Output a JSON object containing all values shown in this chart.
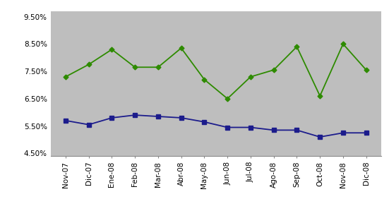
{
  "categories": [
    "Nov-07",
    "Dic-07",
    "Ene-08",
    "Feb-08",
    "Mar-08",
    "Abr-08",
    "May-08",
    "Jun-08",
    "Jul-08",
    "Ago-08",
    "Sep-08",
    "Oct-08",
    "Nov-08",
    "Dic-08"
  ],
  "rendimiento": [
    0.073,
    0.0775,
    0.083,
    0.0765,
    0.0765,
    0.0835,
    0.072,
    0.065,
    0.073,
    0.0755,
    0.084,
    0.066,
    0.085,
    0.0755
  ],
  "tasa_pasiva": [
    0.057,
    0.0555,
    0.058,
    0.059,
    0.0585,
    0.058,
    0.0565,
    0.0545,
    0.0545,
    0.0535,
    0.0535,
    0.051,
    0.0525,
    0.0525
  ],
  "ylim": [
    0.044,
    0.097
  ],
  "yticks": [
    0.045,
    0.055,
    0.065,
    0.075,
    0.085,
    0.095
  ],
  "rendimiento_color": "#2E8B00",
  "tasa_pasiva_color": "#1C1C8C",
  "background_color": "#BEBEBE",
  "outer_background": "#FFFFFF",
  "legend_fontsize": 7.0,
  "tick_fontsize": 7.5,
  "linewidth": 1.3
}
